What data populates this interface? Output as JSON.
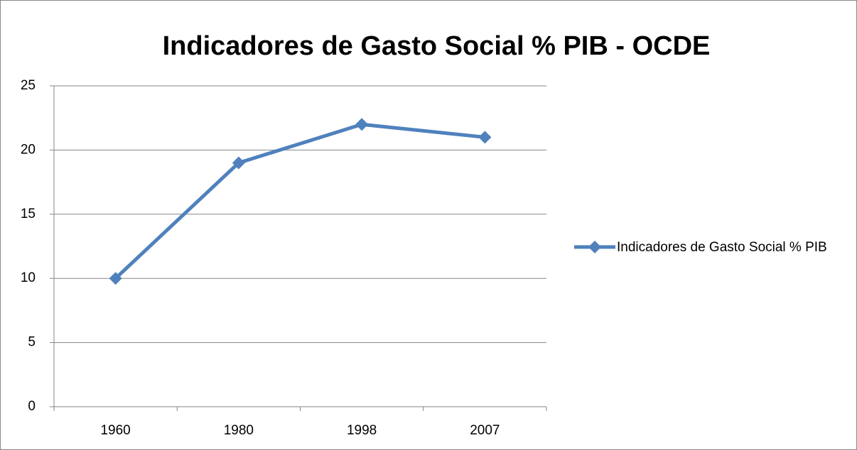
{
  "chart_data": {
    "type": "line",
    "title": "Indicadores de Gasto Social % PIB - OCDE",
    "categories": [
      "1960",
      "1980",
      "1998",
      "2007"
    ],
    "series": [
      {
        "name": "Indicadores de Gasto Social % PIB",
        "color": "#4f81bd",
        "values": [
          10,
          19,
          22,
          21
        ]
      }
    ],
    "ylim": [
      0,
      25
    ],
    "yticks": [
      0,
      5,
      10,
      15,
      20,
      25
    ],
    "grid": true,
    "legend": "right"
  }
}
